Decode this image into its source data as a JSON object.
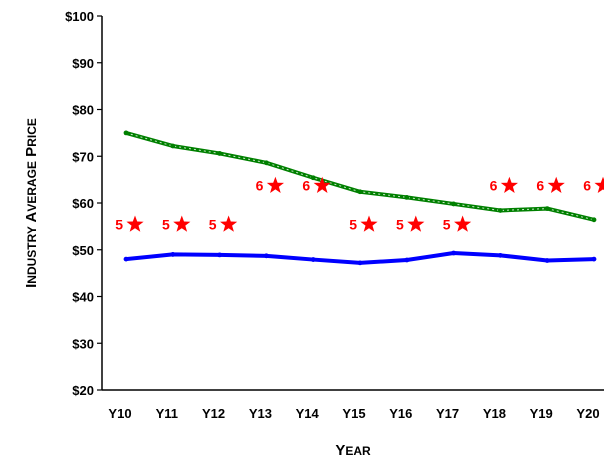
{
  "chart_data": {
    "type": "line",
    "title": "",
    "xlabel": "Year",
    "ylabel": "Industry Average Price",
    "categories": [
      "Y10",
      "Y11",
      "Y12",
      "Y13",
      "Y14",
      "Y15",
      "Y16",
      "Y17",
      "Y18",
      "Y19",
      "Y20"
    ],
    "ylim": [
      20,
      100
    ],
    "yticks": [
      "$20",
      "$30",
      "$40",
      "$50",
      "$60",
      "$70",
      "$80",
      "$90",
      "$100"
    ],
    "grid": false,
    "series": [
      {
        "color": "#0000ff",
        "values": [
          48.0,
          49.0,
          48.9,
          48.7,
          47.9,
          47.2,
          47.8,
          49.3,
          48.8,
          47.7,
          48.0
        ]
      },
      {
        "color": "#008000",
        "values": [
          75.0,
          72.2,
          70.6,
          68.6,
          65.4,
          62.4,
          61.2,
          59.8,
          58.4,
          58.8,
          56.4
        ]
      }
    ],
    "ratings": {
      "color": "#ff0000",
      "labels": [
        "5",
        "5",
        "5",
        "6",
        "6",
        "5",
        "5",
        "5",
        "6",
        "6",
        "6"
      ],
      "values": [
        55.4,
        55.4,
        55.4,
        63.7,
        63.7,
        55.4,
        55.4,
        55.4,
        63.7,
        63.7,
        63.7
      ]
    }
  }
}
